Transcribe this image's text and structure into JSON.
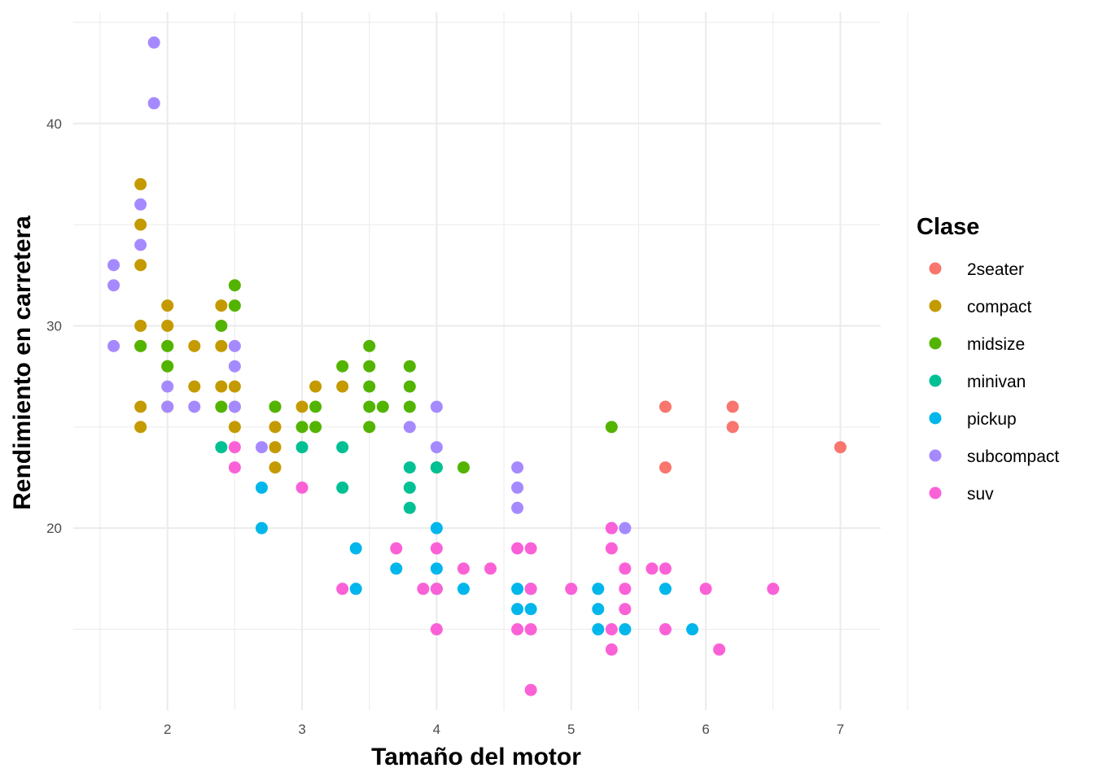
{
  "chart_data": {
    "type": "scatter",
    "xlabel": "Tamaño del motor",
    "ylabel": "Rendimiento en carretera",
    "xlim": [
      1.3,
      7.3
    ],
    "ylim": [
      11.0,
      45.5
    ],
    "x_ticks": [
      2,
      3,
      4,
      5,
      6,
      7
    ],
    "y_ticks": [
      20,
      30,
      40
    ],
    "grid": true,
    "legend": {
      "title": "Clase",
      "position": "right"
    },
    "series": [
      {
        "name": "2seater",
        "color": "#F8766D",
        "points": [
          [
            5.7,
            26
          ],
          [
            5.7,
            23
          ],
          [
            6.2,
            26
          ],
          [
            6.2,
            25
          ],
          [
            7.0,
            24
          ]
        ]
      },
      {
        "name": "compact",
        "color": "#C49A00",
        "points": [
          [
            1.8,
            37
          ],
          [
            1.8,
            35
          ],
          [
            1.8,
            33
          ],
          [
            1.8,
            30
          ],
          [
            1.8,
            29
          ],
          [
            1.8,
            26
          ],
          [
            1.8,
            25
          ],
          [
            2.0,
            31
          ],
          [
            2.0,
            30
          ],
          [
            2.0,
            29
          ],
          [
            2.0,
            28
          ],
          [
            2.0,
            26
          ],
          [
            2.2,
            29
          ],
          [
            2.2,
            27
          ],
          [
            2.4,
            31
          ],
          [
            2.4,
            29
          ],
          [
            2.4,
            27
          ],
          [
            2.5,
            27
          ],
          [
            2.5,
            26
          ],
          [
            2.5,
            25
          ],
          [
            2.8,
            26
          ],
          [
            2.8,
            25
          ],
          [
            2.8,
            24
          ],
          [
            2.8,
            23
          ],
          [
            3.0,
            26
          ],
          [
            3.1,
            27
          ],
          [
            3.3,
            27
          ]
        ]
      },
      {
        "name": "midsize",
        "color": "#53B400",
        "points": [
          [
            1.8,
            29
          ],
          [
            2.0,
            29
          ],
          [
            2.0,
            28
          ],
          [
            2.4,
            30
          ],
          [
            2.4,
            26
          ],
          [
            2.5,
            32
          ],
          [
            2.5,
            31
          ],
          [
            2.8,
            26
          ],
          [
            3.0,
            25
          ],
          [
            3.1,
            26
          ],
          [
            3.1,
            25
          ],
          [
            3.3,
            28
          ],
          [
            3.5,
            29
          ],
          [
            3.5,
            28
          ],
          [
            3.5,
            27
          ],
          [
            3.5,
            26
          ],
          [
            3.5,
            25
          ],
          [
            3.6,
            26
          ],
          [
            3.8,
            28
          ],
          [
            3.8,
            27
          ],
          [
            3.8,
            26
          ],
          [
            4.0,
            23
          ],
          [
            4.2,
            23
          ],
          [
            5.3,
            25
          ]
        ]
      },
      {
        "name": "minivan",
        "color": "#00C094",
        "points": [
          [
            2.4,
            24
          ],
          [
            3.0,
            24
          ],
          [
            3.3,
            24
          ],
          [
            3.3,
            22
          ],
          [
            3.8,
            23
          ],
          [
            3.8,
            22
          ],
          [
            3.8,
            21
          ],
          [
            4.0,
            23
          ]
        ]
      },
      {
        "name": "pickup",
        "color": "#00B6EB",
        "points": [
          [
            2.7,
            22
          ],
          [
            2.7,
            20
          ],
          [
            3.4,
            19
          ],
          [
            3.4,
            17
          ],
          [
            3.7,
            18
          ],
          [
            4.0,
            20
          ],
          [
            4.0,
            18
          ],
          [
            4.0,
            17
          ],
          [
            4.2,
            17
          ],
          [
            4.6,
            17
          ],
          [
            4.6,
            16
          ],
          [
            4.7,
            17
          ],
          [
            4.7,
            16
          ],
          [
            5.2,
            17
          ],
          [
            5.2,
            16
          ],
          [
            5.2,
            15
          ],
          [
            5.4,
            15
          ],
          [
            5.7,
            17
          ],
          [
            5.9,
            15
          ]
        ]
      },
      {
        "name": "subcompact",
        "color": "#A58AFF",
        "points": [
          [
            1.6,
            33
          ],
          [
            1.6,
            32
          ],
          [
            1.6,
            29
          ],
          [
            1.8,
            36
          ],
          [
            1.8,
            34
          ],
          [
            1.9,
            44
          ],
          [
            1.9,
            41
          ],
          [
            2.0,
            27
          ],
          [
            2.0,
            26
          ],
          [
            2.2,
            26
          ],
          [
            2.5,
            29
          ],
          [
            2.5,
            28
          ],
          [
            2.5,
            26
          ],
          [
            2.7,
            24
          ],
          [
            3.8,
            25
          ],
          [
            4.0,
            26
          ],
          [
            4.0,
            24
          ],
          [
            4.6,
            23
          ],
          [
            4.6,
            22
          ],
          [
            4.6,
            21
          ],
          [
            5.3,
            20
          ],
          [
            5.4,
            20
          ]
        ]
      },
      {
        "name": "suv",
        "color": "#FB61D7",
        "points": [
          [
            2.5,
            24
          ],
          [
            2.5,
            23
          ],
          [
            3.0,
            22
          ],
          [
            3.3,
            17
          ],
          [
            3.7,
            19
          ],
          [
            3.9,
            17
          ],
          [
            4.0,
            19
          ],
          [
            4.0,
            17
          ],
          [
            4.0,
            15
          ],
          [
            4.2,
            18
          ],
          [
            4.4,
            18
          ],
          [
            4.6,
            19
          ],
          [
            4.6,
            15
          ],
          [
            4.7,
            19
          ],
          [
            4.7,
            17
          ],
          [
            4.7,
            15
          ],
          [
            4.7,
            12
          ],
          [
            5.0,
            17
          ],
          [
            5.3,
            20
          ],
          [
            5.3,
            19
          ],
          [
            5.3,
            15
          ],
          [
            5.3,
            14
          ],
          [
            5.4,
            18
          ],
          [
            5.4,
            17
          ],
          [
            5.4,
            16
          ],
          [
            5.6,
            18
          ],
          [
            5.7,
            18
          ],
          [
            5.7,
            15
          ],
          [
            6.0,
            17
          ],
          [
            6.1,
            14
          ],
          [
            6.5,
            17
          ]
        ]
      }
    ]
  }
}
